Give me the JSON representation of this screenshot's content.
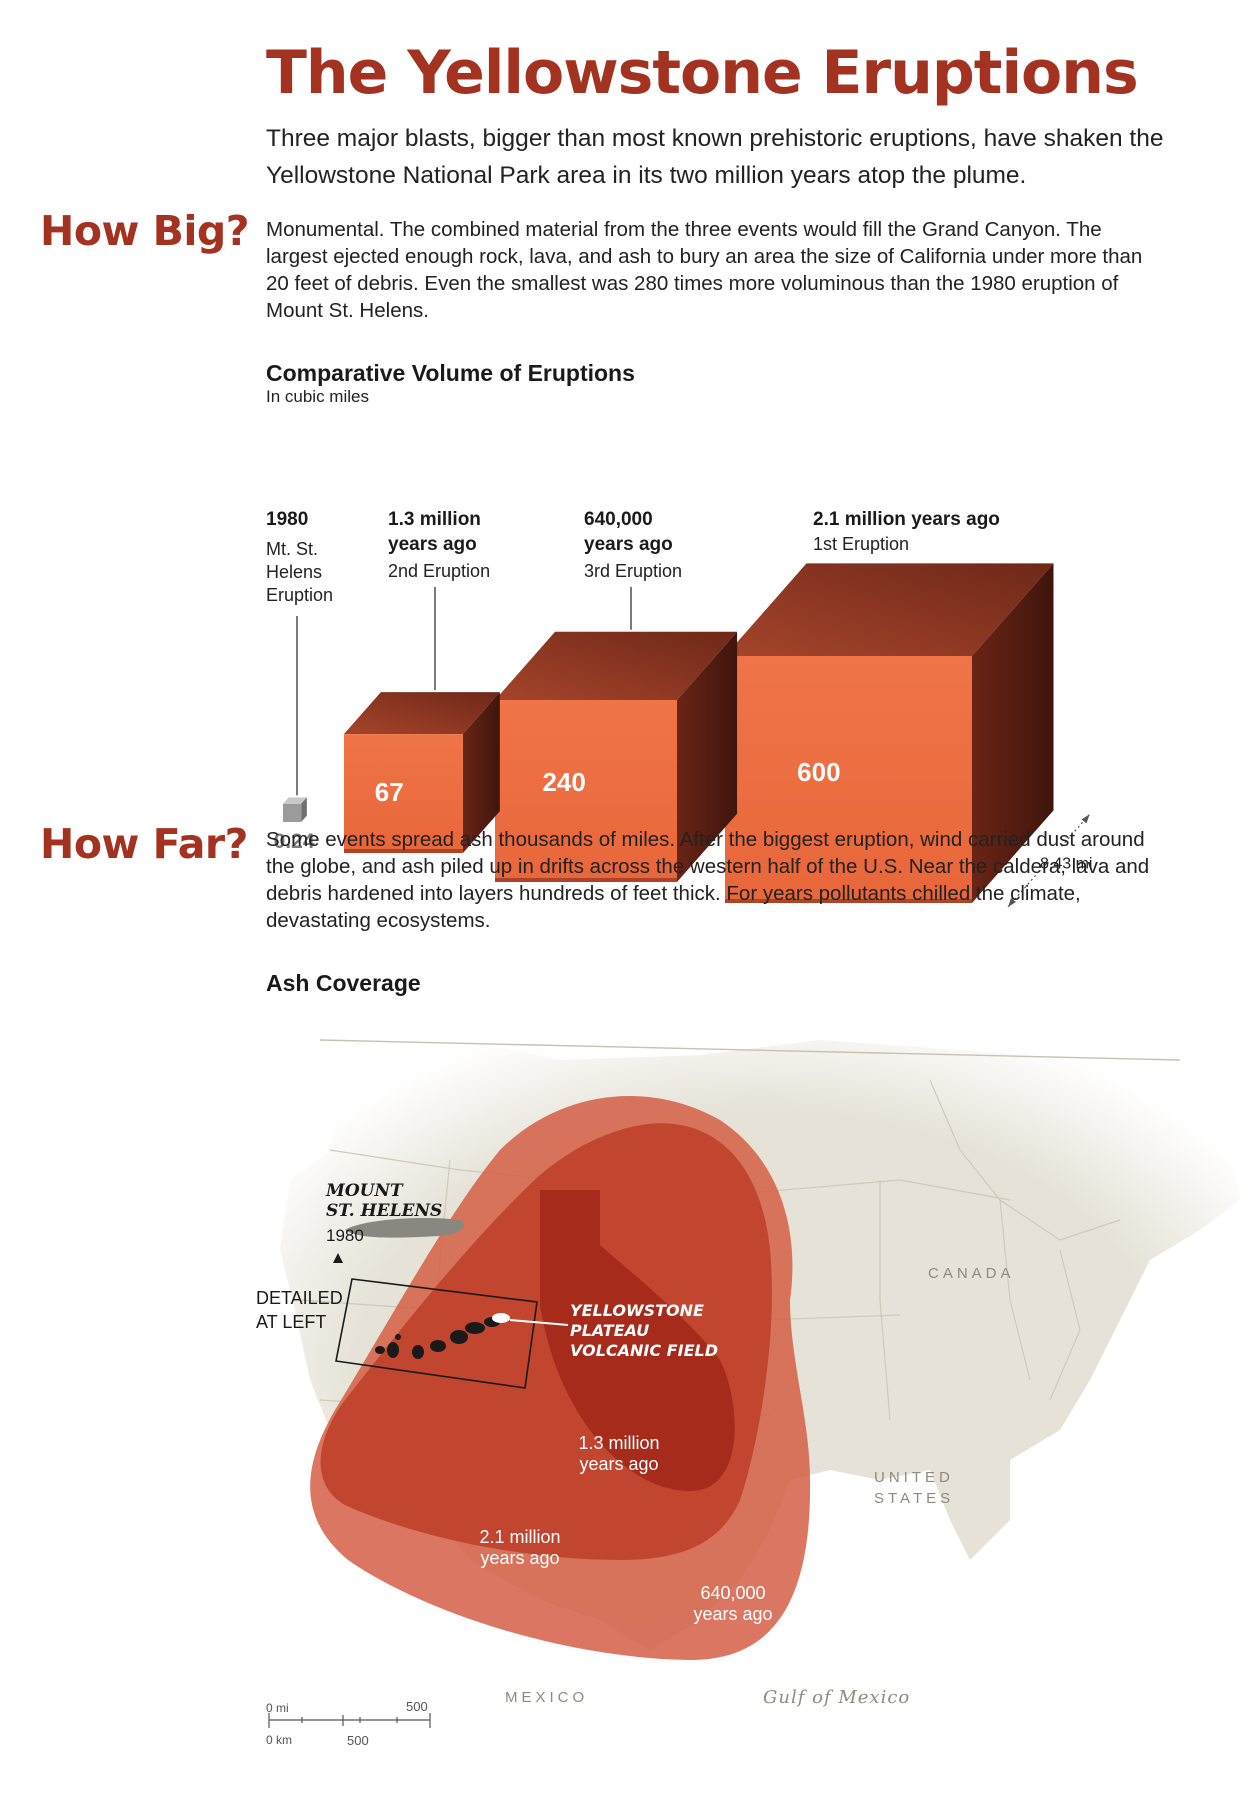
{
  "header": {
    "title": "The Yellowstone Eruptions",
    "intro": "Three major blasts, bigger than most known prehistoric eruptions, have shaken the Yellowstone National Park area in its two million years atop the plume."
  },
  "how_big": {
    "heading": "How Big?",
    "text": "Monumental. The combined material from the three events would fill the Grand Canyon. The largest ejected enough rock, lava, and ash to bury an area the size of California under more than 20 feet of debris. Even the smallest was 280 times more voluminous than the 1980 eruption of Mount St. Helens."
  },
  "how_far": {
    "heading": "How Far?",
    "text": "Some events spread ash thousands of miles. After the biggest eruption, wind carried dust around the globe, and ash piled up in drifts across the western half of the U.S. Near the caldera, lava and debris hardened into layers hundreds of feet thick. For years pollutants chilled the climate, devastating ecosystems."
  },
  "colors": {
    "accent": "#a33220",
    "cube_front": "#ea6a3c",
    "cube_top": "#9e3a24",
    "cube_side": "#5e2014",
    "ash_2_1": "#c0412c",
    "ash_1_3": "#a42a1a",
    "ash_640k": "#d45e45",
    "land": "#e6e2d7",
    "water": "#f7f5f0"
  },
  "chart_data": [
    {
      "type": "bar",
      "title": "Comparative Volume of Eruptions",
      "subtitle": "In cubic miles",
      "unit": "cubic miles",
      "categories": [
        "1980 Mt. St. Helens Eruption",
        "1.3 million years ago 2nd Eruption",
        "640,000 years ago 3rd Eruption",
        "2.1 million years ago 1st Eruption"
      ],
      "values": [
        0.24,
        67,
        240,
        600
      ],
      "bars": [
        {
          "when": "1980",
          "desc": [
            "Mt. St.",
            "Helens",
            "Eruption"
          ],
          "value": 0.24,
          "value_label": "0.24"
        },
        {
          "when": [
            "1.3 million",
            "years ago"
          ],
          "desc": [
            "2nd Eruption"
          ],
          "value": 67,
          "value_label": "67"
        },
        {
          "when": [
            "640,000",
            "years ago"
          ],
          "desc": [
            "3rd Eruption"
          ],
          "value": 240,
          "value_label": "240"
        },
        {
          "when": [
            "2.1 million years ago"
          ],
          "desc": [
            "1st Eruption"
          ],
          "value": 600,
          "value_label": "600"
        }
      ],
      "edge_annotation": "8.43 mi"
    },
    {
      "type": "area",
      "title": "Ash Coverage",
      "regions": [
        {
          "name": [
            "2.1 million",
            "years ago"
          ],
          "color": "#c0412c"
        },
        {
          "name": [
            "1.3 million",
            "years ago"
          ],
          "color": "#a42a1a"
        },
        {
          "name": [
            "640,000",
            "years ago"
          ],
          "color": "#d45e45"
        }
      ],
      "labels": {
        "mount_st_helens": [
          "MOUNT",
          "ST. HELENS"
        ],
        "mount_st_helens_year": "1980",
        "detailed": [
          "DETAILED",
          "AT LEFT"
        ],
        "volcanic_field": [
          "YELLOWSTONE",
          "PLATEAU",
          "VOLCANIC FIELD"
        ],
        "canada": "CANADA",
        "united_states": [
          "UNITED",
          "STATES"
        ],
        "mexico": "MEXICO",
        "gulf": "Gulf of Mexico"
      },
      "scale": {
        "mi_zero": "0 mi",
        "mi_max": "500",
        "km_zero": "0 km",
        "km_max": "500"
      }
    }
  ]
}
